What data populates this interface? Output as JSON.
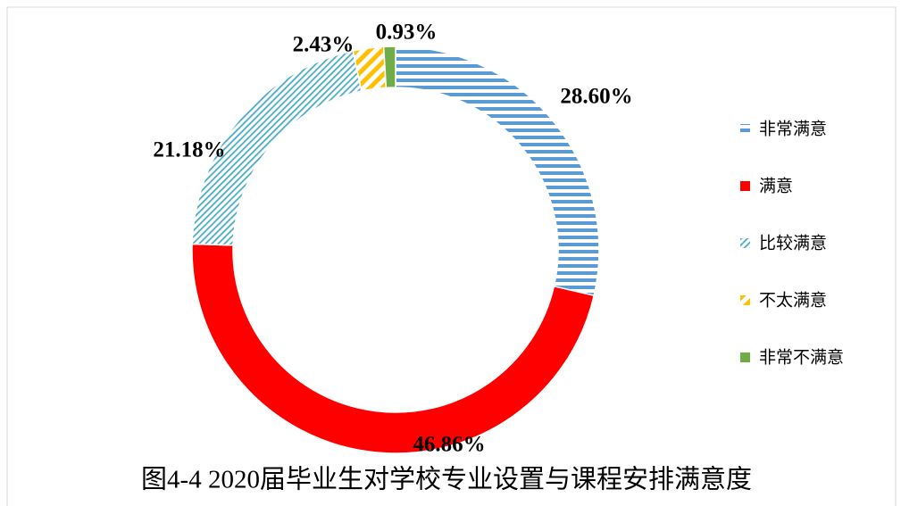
{
  "chart_data": {
    "type": "donut",
    "title": "图4-4  2020届毕业生对学校专业设置与课程安排满意度",
    "categories": [
      "非常满意",
      "满意",
      "比较满意",
      "不太满意",
      "非常不满意"
    ],
    "values": [
      28.6,
      46.86,
      21.18,
      2.43,
      0.93
    ],
    "value_labels": [
      "28.60%",
      "46.86%",
      "21.18%",
      "2.43%",
      "0.93%"
    ],
    "colors": [
      "#5b9bd5",
      "#ff0000",
      "#4bacc6",
      "#ffc000",
      "#70ad47"
    ],
    "legend": "right"
  }
}
